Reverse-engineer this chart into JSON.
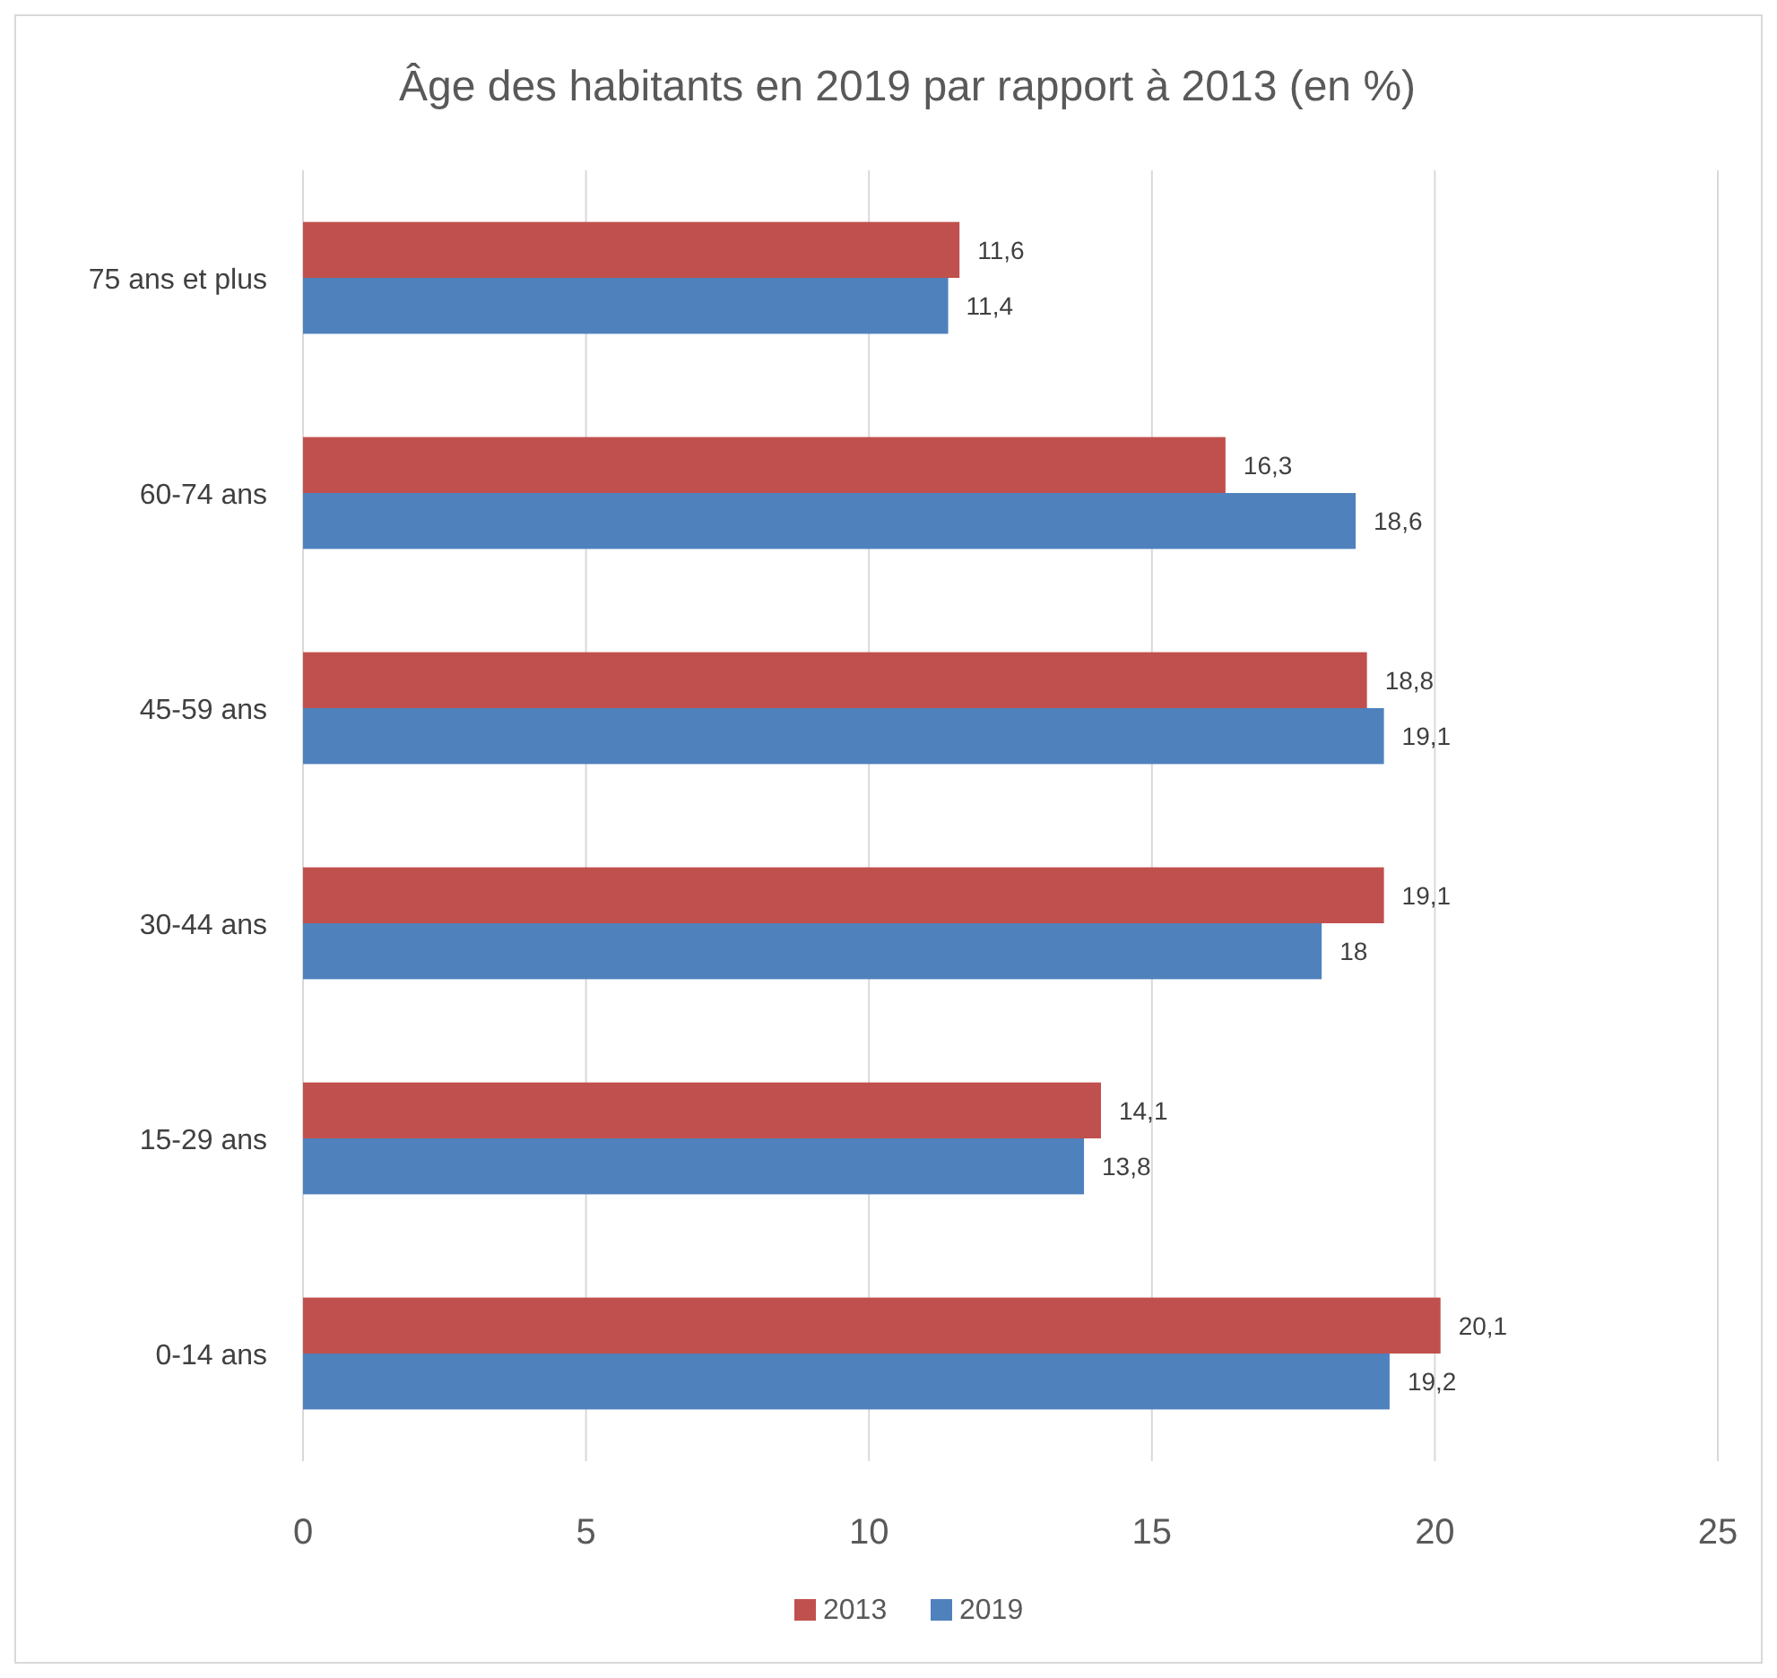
{
  "chart_data": {
    "type": "bar",
    "orientation": "horizontal",
    "title": "Âge des habitants en 2019 par rapport à 2013 (en %)",
    "categories": [
      "75 ans et plus",
      "60-74 ans",
      "45-59 ans",
      "30-44 ans",
      "15-29 ans",
      "0-14 ans"
    ],
    "series": [
      {
        "name": "2013",
        "color": "#c0504d",
        "values": [
          11.6,
          16.3,
          18.8,
          19.1,
          14.1,
          20.1
        ],
        "value_labels": [
          "11,6",
          "16,3",
          "18,8",
          "19,1",
          "14,1",
          "20,1"
        ]
      },
      {
        "name": "2019",
        "color": "#4f81bd",
        "values": [
          11.4,
          18.6,
          19.1,
          18,
          13.8,
          19.2
        ],
        "value_labels": [
          "11,4",
          "18,6",
          "19,1",
          "18",
          "13,8",
          "19,2"
        ]
      }
    ],
    "xlim": [
      0,
      25
    ],
    "xticks": [
      0,
      5,
      10,
      15,
      20,
      25
    ],
    "grid": "x",
    "legend": "bottom"
  }
}
